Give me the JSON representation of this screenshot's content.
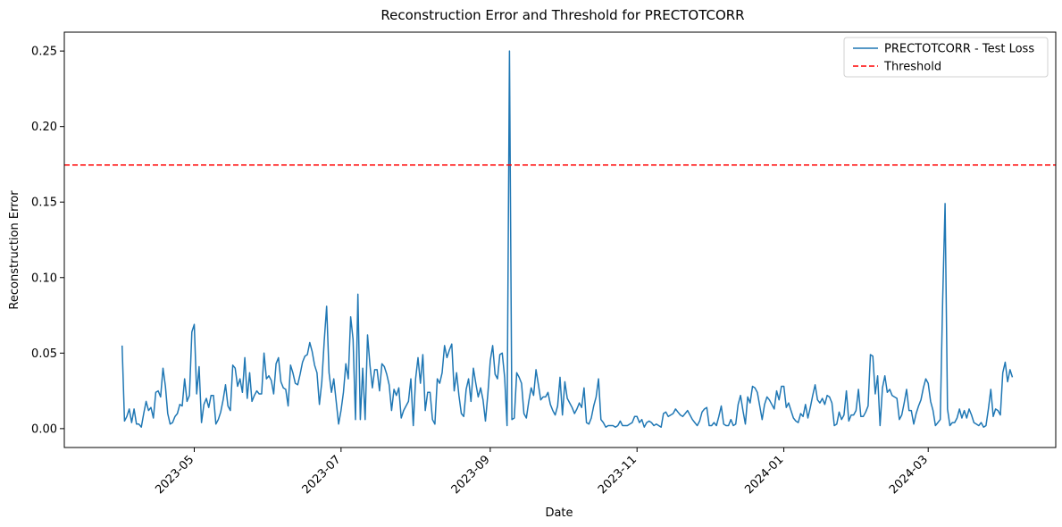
{
  "chart_data": {
    "type": "line",
    "title": "Reconstruction Error and Threshold for PRECTOTCORR",
    "xlabel": "Date",
    "ylabel": "Reconstruction Error",
    "x_range": [
      "2023-03-08",
      "2024-04-23"
    ],
    "ylim": [
      -0.0125,
      0.2625
    ],
    "x_ticks": [
      "2023-05-01",
      "2023-07-01",
      "2023-09-01",
      "2023-11-01",
      "2024-01-01",
      "2024-03-01"
    ],
    "x_tick_labels": [
      "2023-05",
      "2023-07",
      "2023-09",
      "2023-11",
      "2024-01",
      "2024-03"
    ],
    "y_ticks": [
      0.0,
      0.05,
      0.1,
      0.15,
      0.2,
      0.25
    ],
    "y_tick_labels": [
      "0.00",
      "0.05",
      "0.10",
      "0.15",
      "0.20",
      "0.25"
    ],
    "grid": false,
    "legend_position": "top-right",
    "series": [
      {
        "name": "PRECTOTCORR - Test Loss",
        "color": "#1f77b4",
        "style": "solid",
        "start_date": "2023-04-01",
        "step_days": 1,
        "values": [
          0.055,
          0.005,
          0.008,
          0.013,
          0.004,
          0.013,
          0.003,
          0.003,
          0.001,
          0.01,
          0.018,
          0.012,
          0.014,
          0.007,
          0.024,
          0.025,
          0.021,
          0.04,
          0.028,
          0.01,
          0.003,
          0.004,
          0.008,
          0.01,
          0.016,
          0.015,
          0.033,
          0.018,
          0.022,
          0.064,
          0.069,
          0.023,
          0.041,
          0.004,
          0.016,
          0.02,
          0.014,
          0.022,
          0.022,
          0.003,
          0.006,
          0.011,
          0.019,
          0.029,
          0.015,
          0.012,
          0.042,
          0.04,
          0.028,
          0.033,
          0.024,
          0.047,
          0.02,
          0.037,
          0.018,
          0.022,
          0.025,
          0.023,
          0.023,
          0.05,
          0.033,
          0.035,
          0.032,
          0.023,
          0.043,
          0.047,
          0.031,
          0.027,
          0.026,
          0.015,
          0.042,
          0.037,
          0.03,
          0.029,
          0.036,
          0.044,
          0.048,
          0.049,
          0.057,
          0.051,
          0.042,
          0.037,
          0.016,
          0.031,
          0.058,
          0.081,
          0.037,
          0.024,
          0.033,
          0.018,
          0.003,
          0.012,
          0.024,
          0.043,
          0.033,
          0.074,
          0.059,
          0.006,
          0.089,
          0.006,
          0.04,
          0.006,
          0.062,
          0.042,
          0.027,
          0.039,
          0.039,
          0.025,
          0.043,
          0.041,
          0.036,
          0.029,
          0.012,
          0.026,
          0.022,
          0.027,
          0.007,
          0.012,
          0.015,
          0.018,
          0.033,
          0.002,
          0.033,
          0.047,
          0.03,
          0.049,
          0.012,
          0.024,
          0.024,
          0.006,
          0.003,
          0.033,
          0.03,
          0.037,
          0.055,
          0.047,
          0.052,
          0.056,
          0.025,
          0.037,
          0.022,
          0.01,
          0.008,
          0.026,
          0.033,
          0.018,
          0.04,
          0.03,
          0.021,
          0.027,
          0.019,
          0.005,
          0.023,
          0.045,
          0.055,
          0.036,
          0.033,
          0.049,
          0.05,
          0.034,
          0.002,
          0.25,
          0.006,
          0.007,
          0.037,
          0.034,
          0.03,
          0.01,
          0.007,
          0.018,
          0.027,
          0.022,
          0.039,
          0.029,
          0.019,
          0.021,
          0.021,
          0.024,
          0.016,
          0.012,
          0.009,
          0.015,
          0.034,
          0.009,
          0.031,
          0.02,
          0.017,
          0.014,
          0.01,
          0.013,
          0.017,
          0.014,
          0.027,
          0.004,
          0.003,
          0.007,
          0.015,
          0.021,
          0.033,
          0.006,
          0.004,
          0.001,
          0.002,
          0.002,
          0.002,
          0.001,
          0.002,
          0.005,
          0.002,
          0.002,
          0.002,
          0.003,
          0.004,
          0.008,
          0.008,
          0.004,
          0.006,
          0.001,
          0.004,
          0.005,
          0.004,
          0.002,
          0.003,
          0.002,
          0.001,
          0.01,
          0.011,
          0.008,
          0.009,
          0.01,
          0.013,
          0.011,
          0.009,
          0.008,
          0.01,
          0.012,
          0.009,
          0.006,
          0.004,
          0.002,
          0.005,
          0.011,
          0.013,
          0.014,
          0.002,
          0.002,
          0.004,
          0.002,
          0.008,
          0.015,
          0.003,
          0.002,
          0.002,
          0.006,
          0.002,
          0.003,
          0.016,
          0.022,
          0.012,
          0.003,
          0.021,
          0.017,
          0.028,
          0.027,
          0.024,
          0.015,
          0.006,
          0.016,
          0.021,
          0.019,
          0.016,
          0.013,
          0.025,
          0.019,
          0.028,
          0.028,
          0.014,
          0.017,
          0.012,
          0.007,
          0.005,
          0.004,
          0.01,
          0.008,
          0.016,
          0.007,
          0.014,
          0.022,
          0.029,
          0.019,
          0.017,
          0.02,
          0.016,
          0.022,
          0.021,
          0.017,
          0.002,
          0.003,
          0.011,
          0.006,
          0.009,
          0.025,
          0.005,
          0.009,
          0.009,
          0.012,
          0.026,
          0.008,
          0.008,
          0.011,
          0.015,
          0.049,
          0.048,
          0.023,
          0.035,
          0.002,
          0.027,
          0.035,
          0.024,
          0.026,
          0.022,
          0.021,
          0.02,
          0.006,
          0.009,
          0.017,
          0.026,
          0.012,
          0.012,
          0.003,
          0.01,
          0.015,
          0.019,
          0.027,
          0.033,
          0.03,
          0.018,
          0.012,
          0.002,
          0.004,
          0.006,
          0.085,
          0.149,
          0.013,
          0.002,
          0.004,
          0.004,
          0.007,
          0.013,
          0.007,
          0.012,
          0.007,
          0.013,
          0.009,
          0.004,
          0.003,
          0.002,
          0.004,
          0.001,
          0.002,
          0.013,
          0.026,
          0.008,
          0.013,
          0.012,
          0.009,
          0.037,
          0.044,
          0.031,
          0.039,
          0.034
        ]
      },
      {
        "name": "Threshold",
        "color": "#ff0000",
        "style": "dashed",
        "value": 0.1745
      }
    ]
  }
}
